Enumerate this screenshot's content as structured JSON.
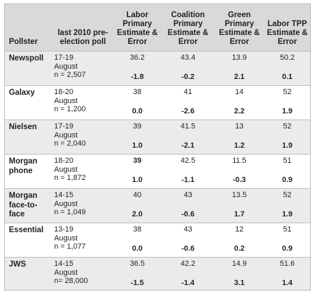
{
  "headers": [
    "Pollster",
    "last 2010 pre-election poll",
    "Labor Primary Estimate & Error",
    "Coalition Primary Estimate & Error",
    "Green Primary Estimate & Error",
    "Labor TPP Estimate & Error"
  ],
  "rows": [
    {
      "pollster": "Newspoll",
      "date_line1": "17-19",
      "date_line2": "August",
      "sample": "n = 2,507",
      "labor": {
        "estimate": "36.2",
        "error": "-1.8"
      },
      "coalition": {
        "estimate": "43.4",
        "error": "-0.2"
      },
      "green": {
        "estimate": "13.9",
        "error": "2.1"
      },
      "tpp": {
        "estimate": "50.2",
        "error": "0.1"
      }
    },
    {
      "pollster": "Galaxy",
      "date_line1": "18-20",
      "date_line2": "August",
      "sample": "n = 1,200",
      "labor": {
        "estimate": "38",
        "error": "0.0"
      },
      "coalition": {
        "estimate": "41",
        "error": "-2.6"
      },
      "green": {
        "estimate": "14",
        "error": "2.2"
      },
      "tpp": {
        "estimate": "52",
        "error": "1.9"
      }
    },
    {
      "pollster": "Nielsen",
      "date_line1": "17-19",
      "date_line2": "August",
      "sample": "n = 2,040",
      "labor": {
        "estimate": "39",
        "error": "1.0"
      },
      "coalition": {
        "estimate": "41.5",
        "error": "-2.1"
      },
      "green": {
        "estimate": "13",
        "error": "1.2"
      },
      "tpp": {
        "estimate": "52",
        "error": "1.9"
      }
    },
    {
      "pollster": "Morgan phone",
      "date_line1": "18-20",
      "date_line2": "August",
      "sample": "n = 1,872",
      "labor": {
        "estimate": "39",
        "error": "1.0",
        "estimate_bold": true
      },
      "coalition": {
        "estimate": "42.5",
        "error": "-1.1"
      },
      "green": {
        "estimate": "11.5",
        "error": "-0.3"
      },
      "tpp": {
        "estimate": "51",
        "error": "0.9"
      }
    },
    {
      "pollster": "Morgan face-to-face",
      "date_line1": "14-15",
      "date_line2": "August",
      "sample": "n = 1,049",
      "labor": {
        "estimate": "40",
        "error": "2.0"
      },
      "coalition": {
        "estimate": "43",
        "error": "-0.6"
      },
      "green": {
        "estimate": "13.5",
        "error": "1.7"
      },
      "tpp": {
        "estimate": "52",
        "error": "1.9"
      }
    },
    {
      "pollster": "Essential",
      "date_line1": "13-19",
      "date_line2": "August",
      "sample": "n = 1,077",
      "labor": {
        "estimate": "38",
        "error": "0.0"
      },
      "coalition": {
        "estimate": "43",
        "error": "-0.6"
      },
      "green": {
        "estimate": "12",
        "error": "0.2"
      },
      "tpp": {
        "estimate": "51",
        "error": "0.9"
      }
    },
    {
      "pollster": "JWS",
      "date_line1": "14-15",
      "date_line2": "August",
      "sample": "n= 28,000",
      "labor": {
        "estimate": "36.5",
        "error": "-1.5"
      },
      "coalition": {
        "estimate": "42.2",
        "error": "-1.4"
      },
      "green": {
        "estimate": "14.9",
        "error": "3.1"
      },
      "tpp": {
        "estimate": "51.6",
        "error": "1.4"
      }
    }
  ]
}
